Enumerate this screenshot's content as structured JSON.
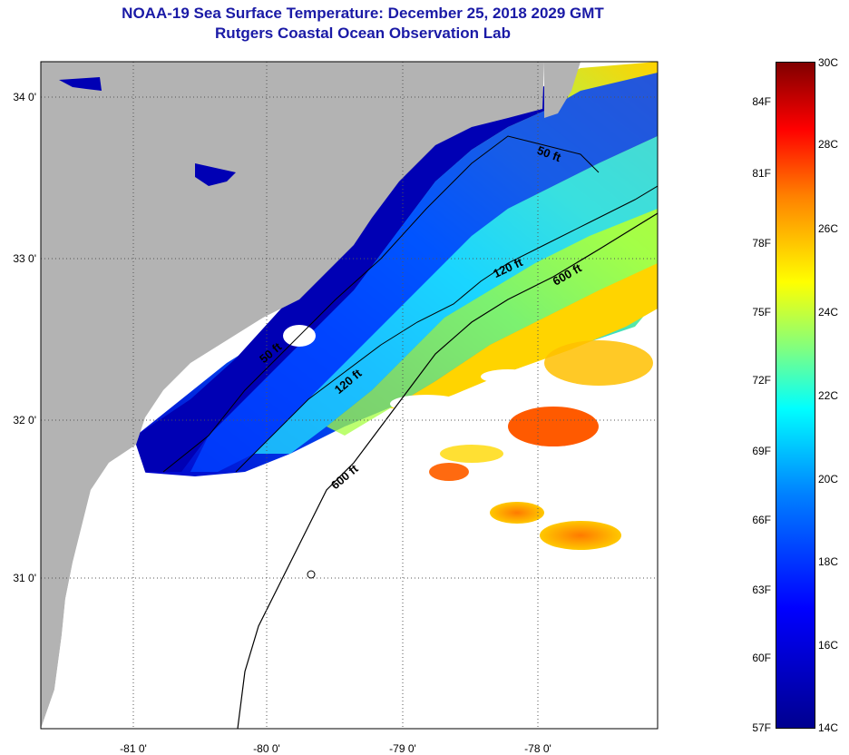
{
  "title": {
    "line1": "NOAA-19 Sea Surface Temperature:  December 25, 2018 2029 GMT",
    "line2": "Rutgers Coastal Ocean Observation Lab"
  },
  "latitude_labels": [
    "34 0'",
    "33 0'",
    "32 0'",
    "31 0'"
  ],
  "longitude_labels": [
    "-81 0'",
    "-80 0'",
    "-79 0'",
    "-78 0'"
  ],
  "contours": {
    "shallow": "50 ft",
    "mid": "120 ft",
    "deep": "600 ft"
  },
  "colorbar": {
    "celsius": [
      "30C",
      "28C",
      "26C",
      "24C",
      "22C",
      "20C",
      "18C",
      "16C",
      "14C"
    ],
    "fahrenheit": [
      "84F",
      "81F",
      "78F",
      "75F",
      "72F",
      "69F",
      "66F",
      "63F",
      "60F",
      "57F"
    ]
  },
  "colors": {
    "land": "#b3b3b3",
    "cloud": "#ffffff",
    "title": "#1a1aa6"
  }
}
